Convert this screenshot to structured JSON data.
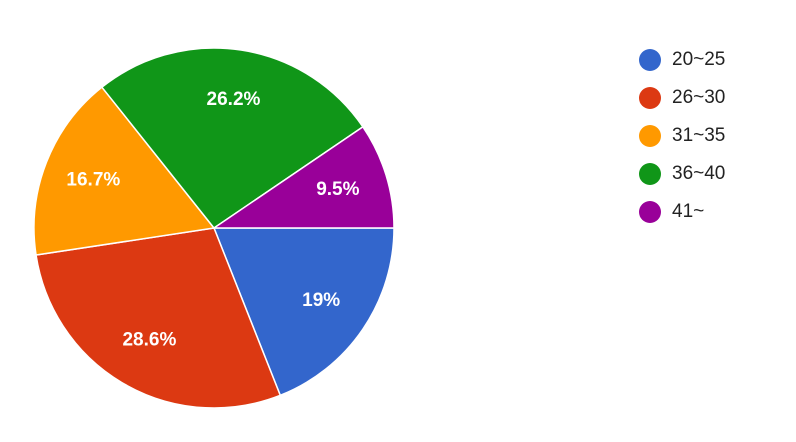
{
  "chart_data": {
    "type": "pie",
    "categories": [
      "20~25",
      "26~30",
      "31~35",
      "36~40",
      "41~"
    ],
    "values": [
      19,
      28.6,
      16.7,
      26.2,
      9.5
    ],
    "value_labels": [
      "19%",
      "28.6%",
      "16.7%",
      "26.2%",
      "9.5%"
    ],
    "colors": [
      "#3366cc",
      "#dc3912",
      "#ff9900",
      "#109618",
      "#990099"
    ],
    "legend": "right"
  }
}
